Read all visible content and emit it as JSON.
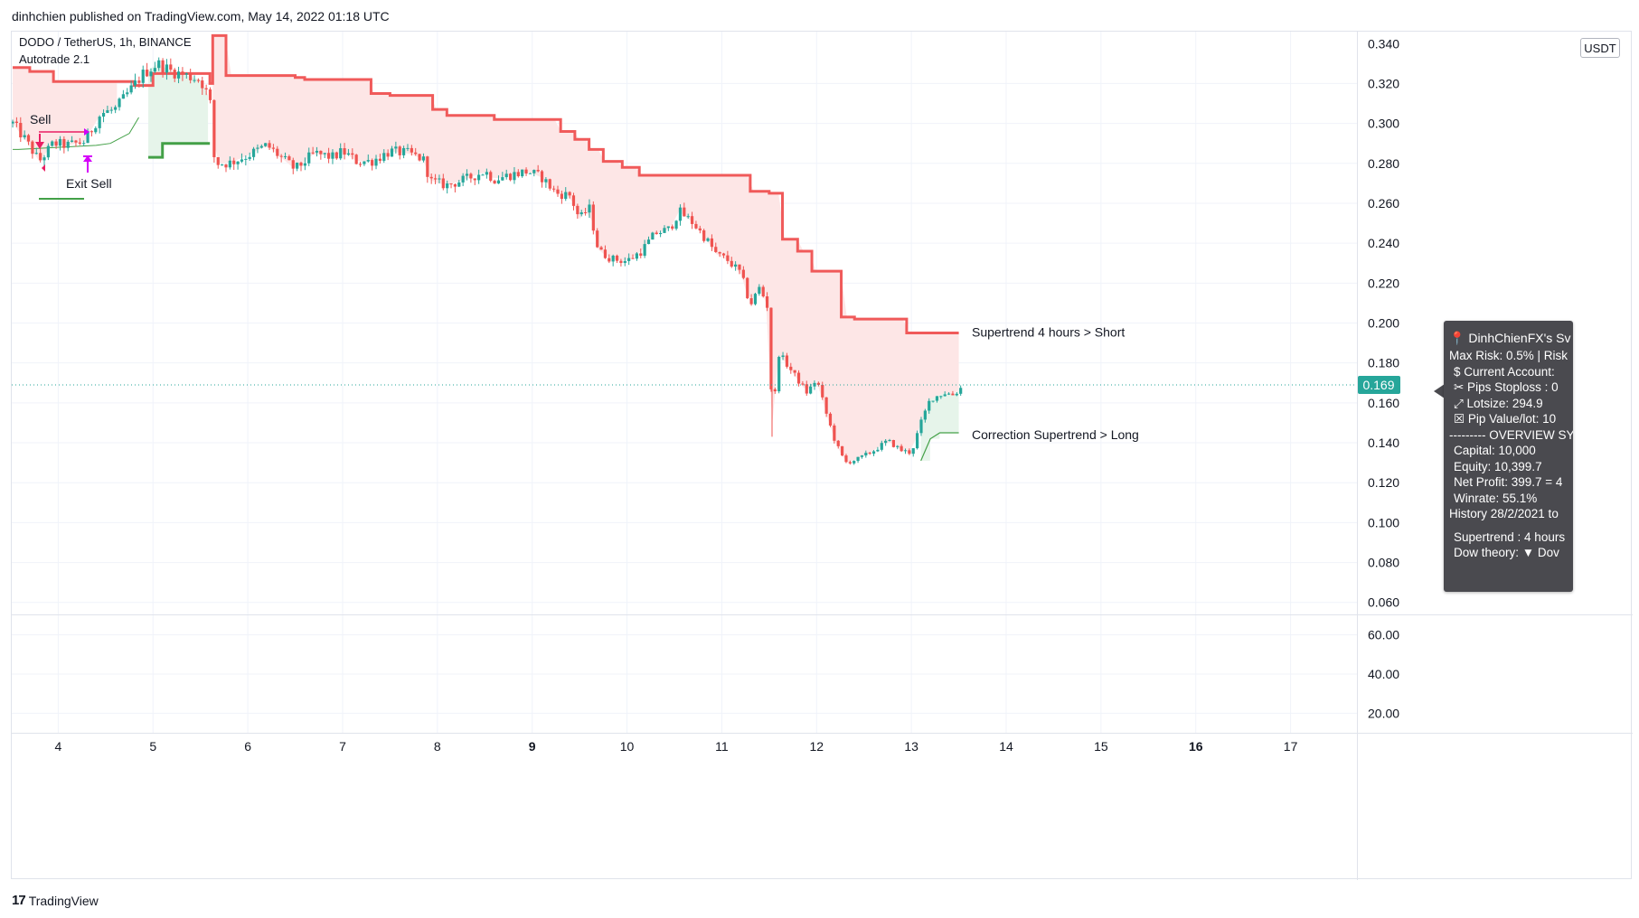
{
  "header": {
    "publisher": "dinhchien published on TradingView.com, May 14, 2022 01:18 UTC"
  },
  "legend": {
    "symbol_line": "DODO / TetherUS, 1h, BINANCE",
    "indicator_name": "Autotrade 2.1"
  },
  "currency_button": "USDT",
  "footer": {
    "logo_mark": "17",
    "logo_text": "TradingView"
  },
  "colors": {
    "up_candle": "#26a69a",
    "down_candle": "#ef5350",
    "supertrend_short": "#f05a5a",
    "supertrend_long": "#43a047",
    "short_fill": "#fde6e6",
    "long_fill": "#e6f4ea",
    "price_tag": "#26a69a",
    "arrow_sell": "#e91e63",
    "arrow_exit": "#d500f9",
    "panel_bg": "#4a4a4f"
  },
  "annotations": {
    "sell": "Sell",
    "exit_sell": "Exit Sell",
    "supertrend_short": "Supertrend 4 hours > Short",
    "correction_long": "Correction Supertrend  > Long"
  },
  "info_panel": {
    "title": "DinhChienFX's Sv",
    "title_icon": "pin-icon",
    "lines": [
      "Max Risk: 0.5% | Risk",
      "$ Current Account: ",
      "✂ Pips Stoploss : 0",
      "⤢ Lotsize: 294.9",
      "☒ Pip Value/lot: 10",
      "--------- OVERVIEW SY"
    ],
    "overview": [
      "Capital: 10,000",
      "Equity: 10,399.7",
      "Net Profit: 399.7 = 4",
      "Winrate: 55.1%"
    ],
    "history": "History 28/2/2021 to",
    "trend_lines": [
      "Supertrend : 4 hours",
      "Dow theory:  ▼  Dov"
    ]
  },
  "chart_data": {
    "type": "candlestick",
    "title": "DODO / TetherUS, 1h, BINANCE",
    "price_axis": {
      "ticks": [
        "0.320",
        "0.300",
        "0.280",
        "0.260",
        "0.240",
        "0.220",
        "0.200",
        "0.180",
        "0.160",
        "0.140",
        "0.120",
        "0.100",
        "0.080",
        "0.060"
      ],
      "ylim": [
        0.054,
        0.346
      ]
    },
    "current_price": "0.169",
    "oscillator_axis": {
      "ticks": [
        "60.00",
        "40.00",
        "20.00"
      ],
      "ylim": [
        10,
        70
      ]
    },
    "x_axis": {
      "ticks": [
        "4",
        "5",
        "6",
        "7",
        "8",
        "9",
        "10",
        "11",
        "12",
        "13",
        "14",
        "15",
        "16",
        "17"
      ],
      "bold_ticks": [
        "9",
        "16"
      ],
      "xlim_days": [
        3.51,
        17.7
      ]
    },
    "close_path": [
      [
        3.52,
        0.3
      ],
      [
        3.65,
        0.292
      ],
      [
        3.8,
        0.281
      ],
      [
        3.95,
        0.29
      ],
      [
        4.1,
        0.289
      ],
      [
        4.28,
        0.291
      ],
      [
        4.45,
        0.305
      ],
      [
        4.6,
        0.307
      ],
      [
        4.75,
        0.316
      ],
      [
        4.9,
        0.325
      ],
      [
        5.05,
        0.33
      ],
      [
        5.2,
        0.326
      ],
      [
        5.35,
        0.324
      ],
      [
        5.5,
        0.322
      ],
      [
        5.6,
        0.312
      ],
      [
        5.65,
        0.28
      ],
      [
        5.8,
        0.28
      ],
      [
        6.0,
        0.284
      ],
      [
        6.2,
        0.289
      ],
      [
        6.35,
        0.283
      ],
      [
        6.5,
        0.277
      ],
      [
        6.7,
        0.285
      ],
      [
        6.9,
        0.283
      ],
      [
        7.0,
        0.286
      ],
      [
        7.15,
        0.281
      ],
      [
        7.3,
        0.281
      ],
      [
        7.5,
        0.286
      ],
      [
        7.7,
        0.285
      ],
      [
        7.85,
        0.282
      ],
      [
        7.93,
        0.271
      ],
      [
        8.1,
        0.269
      ],
      [
        8.3,
        0.272
      ],
      [
        8.5,
        0.276
      ],
      [
        8.6,
        0.272
      ],
      [
        8.75,
        0.274
      ],
      [
        8.95,
        0.276
      ],
      [
        9.1,
        0.273
      ],
      [
        9.25,
        0.265
      ],
      [
        9.4,
        0.264
      ],
      [
        9.5,
        0.252
      ],
      [
        9.6,
        0.258
      ],
      [
        9.7,
        0.236
      ],
      [
        9.85,
        0.232
      ],
      [
        10.0,
        0.231
      ],
      [
        10.15,
        0.236
      ],
      [
        10.3,
        0.245
      ],
      [
        10.45,
        0.247
      ],
      [
        10.55,
        0.256
      ],
      [
        10.7,
        0.25
      ],
      [
        10.85,
        0.241
      ],
      [
        10.95,
        0.234
      ],
      [
        11.05,
        0.232
      ],
      [
        11.2,
        0.225
      ],
      [
        11.3,
        0.209
      ],
      [
        11.4,
        0.218
      ],
      [
        11.5,
        0.206
      ],
      [
        11.53,
        0.148
      ],
      [
        11.6,
        0.185
      ],
      [
        11.75,
        0.175
      ],
      [
        11.9,
        0.165
      ],
      [
        12.0,
        0.172
      ],
      [
        12.1,
        0.155
      ],
      [
        12.2,
        0.14
      ],
      [
        12.3,
        0.13
      ],
      [
        12.45,
        0.132
      ],
      [
        12.6,
        0.136
      ],
      [
        12.75,
        0.141
      ],
      [
        12.9,
        0.136
      ],
      [
        13.0,
        0.135
      ],
      [
        13.1,
        0.15
      ],
      [
        13.2,
        0.162
      ],
      [
        13.35,
        0.165
      ],
      [
        13.45,
        0.164
      ],
      [
        13.55,
        0.169
      ]
    ],
    "supertrend_short": [
      [
        3.52,
        0.328
      ],
      [
        3.7,
        0.328
      ],
      [
        3.7,
        0.326
      ],
      [
        3.95,
        0.326
      ],
      [
        3.95,
        0.321
      ],
      [
        4.8,
        0.321
      ],
      [
        4.8,
        0.319
      ],
      [
        5.0,
        0.319
      ],
      [
        5.0,
        0.325
      ],
      [
        5.6,
        0.325
      ],
      [
        5.6,
        0.32
      ],
      [
        5.63,
        0.32
      ],
      [
        5.63,
        0.344
      ],
      [
        5.77,
        0.344
      ],
      [
        5.77,
        0.324
      ],
      [
        6.5,
        0.324
      ],
      [
        6.5,
        0.323
      ],
      [
        6.6,
        0.323
      ],
      [
        6.6,
        0.322
      ],
      [
        7.3,
        0.322
      ],
      [
        7.3,
        0.315
      ],
      [
        7.5,
        0.315
      ],
      [
        7.5,
        0.314
      ],
      [
        7.95,
        0.314
      ],
      [
        7.95,
        0.307
      ],
      [
        8.1,
        0.307
      ],
      [
        8.1,
        0.304
      ],
      [
        8.6,
        0.304
      ],
      [
        8.6,
        0.302
      ],
      [
        9.3,
        0.302
      ],
      [
        9.3,
        0.296
      ],
      [
        9.45,
        0.296
      ],
      [
        9.45,
        0.292
      ],
      [
        9.6,
        0.292
      ],
      [
        9.6,
        0.287
      ],
      [
        9.75,
        0.287
      ],
      [
        9.75,
        0.281
      ],
      [
        9.95,
        0.281
      ],
      [
        9.95,
        0.278
      ],
      [
        10.13,
        0.278
      ],
      [
        10.13,
        0.274
      ],
      [
        11.3,
        0.274
      ],
      [
        11.3,
        0.266
      ],
      [
        11.5,
        0.266
      ],
      [
        11.5,
        0.265
      ],
      [
        11.64,
        0.265
      ],
      [
        11.64,
        0.242
      ],
      [
        11.8,
        0.242
      ],
      [
        11.8,
        0.236
      ],
      [
        11.95,
        0.236
      ],
      [
        11.95,
        0.226
      ],
      [
        12.26,
        0.226
      ],
      [
        12.26,
        0.203
      ],
      [
        12.4,
        0.203
      ],
      [
        12.4,
        0.202
      ],
      [
        12.95,
        0.202
      ],
      [
        12.95,
        0.195
      ],
      [
        13.5,
        0.195
      ]
    ],
    "supertrend_long": [
      [
        3.52,
        0.287
      ],
      [
        3.58,
        0.287
      ],
      [
        4.4,
        0.289
      ],
      [
        4.55,
        0.29
      ],
      [
        4.75,
        0.295
      ],
      [
        4.85,
        0.303
      ],
      [
        4.95,
        0.313
      ],
      [
        4.95,
        0.283
      ],
      [
        5.1,
        0.283
      ],
      [
        5.1,
        0.29
      ],
      [
        5.6,
        0.29
      ]
    ],
    "correction_long": [
      [
        13.1,
        0.131
      ],
      [
        13.2,
        0.142
      ],
      [
        13.3,
        0.145
      ],
      [
        13.5,
        0.145
      ]
    ],
    "oscillator_gridlines": [
      "60.00",
      "40.00",
      "20.00"
    ]
  }
}
